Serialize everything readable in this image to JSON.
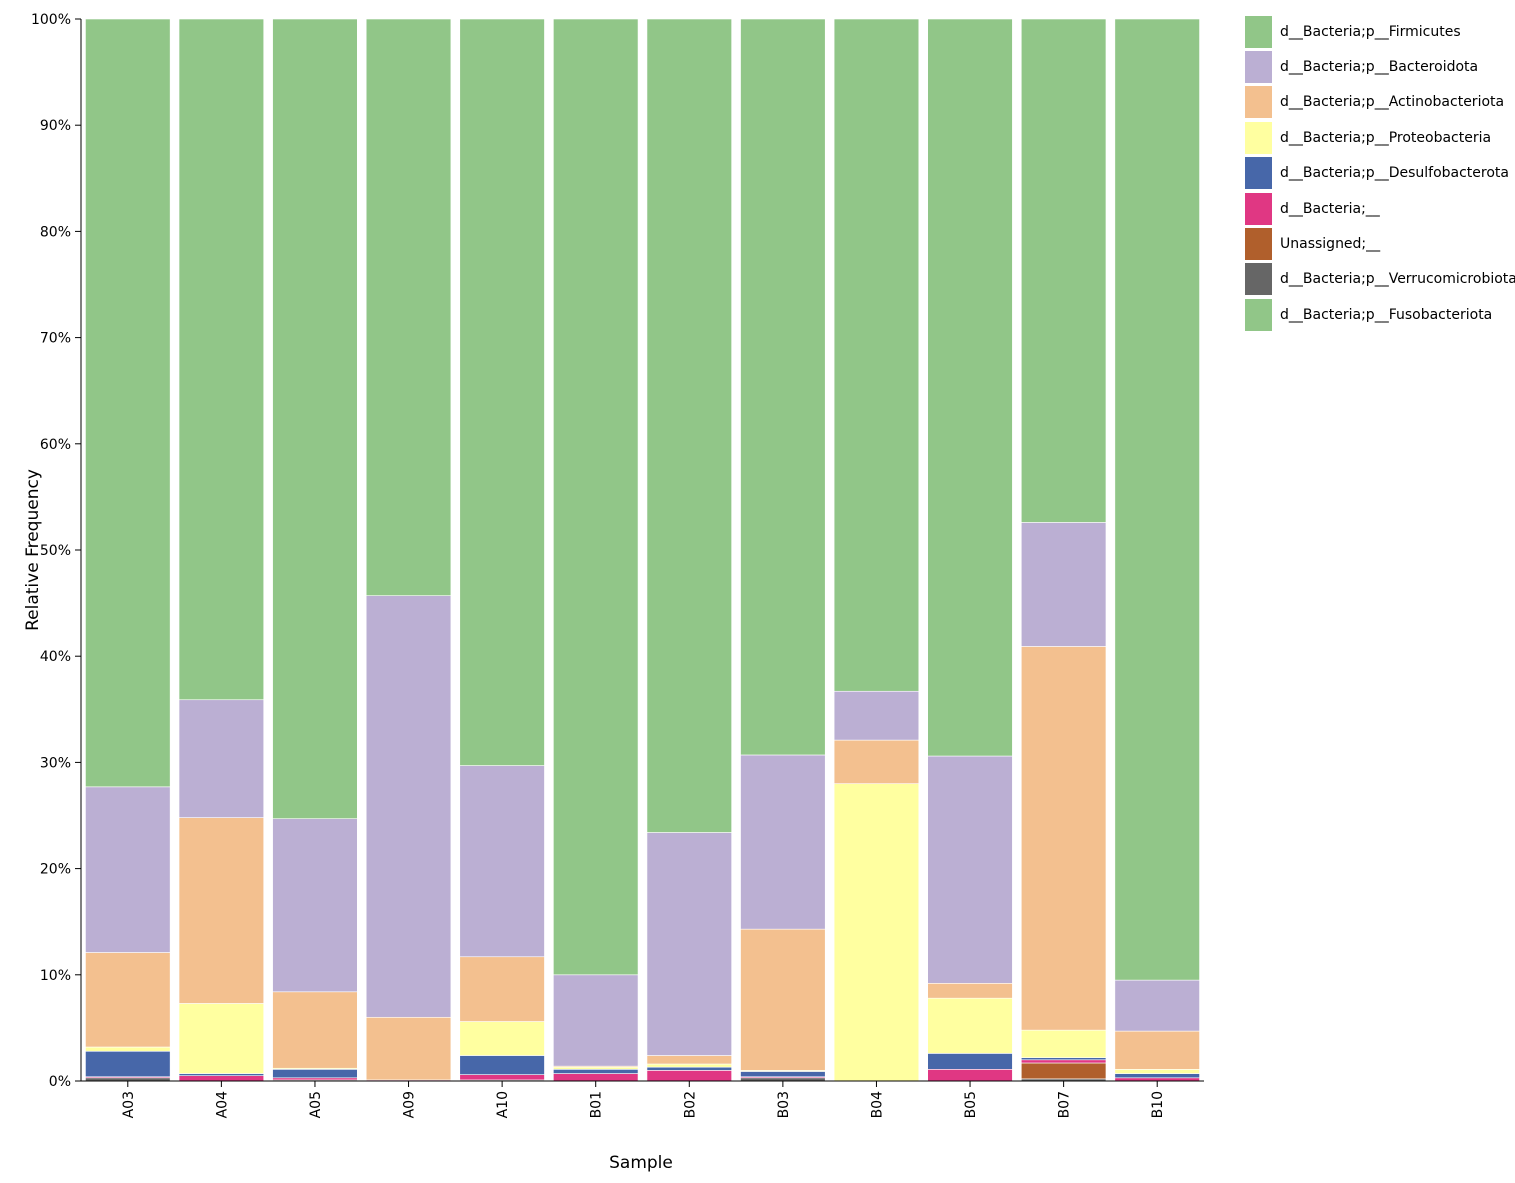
{
  "chart_data": {
    "type": "bar",
    "stacked": true,
    "xlabel": "Sample",
    "ylabel": "Relative Frequency",
    "ylim": [
      0,
      100
    ],
    "y_ticks": [
      "0%",
      "10%",
      "20%",
      "30%",
      "40%",
      "50%",
      "60%",
      "70%",
      "80%",
      "90%",
      "100%"
    ],
    "categories": [
      "A03",
      "A04",
      "A05",
      "A09",
      "A10",
      "B01",
      "B02",
      "B03",
      "B04",
      "B05",
      "B07",
      "B10"
    ],
    "series": [
      {
        "name": "d__Bacteria;p__Firmicutes",
        "color": "#91c688",
        "values": [
          72.3,
          64.1,
          75.3,
          54.3,
          70.3,
          90.0,
          76.6,
          69.3,
          63.3,
          69.4,
          47.5,
          90.5
        ]
      },
      {
        "name": "d__Bacteria;p__Bacteroidota",
        "color": "#bbafd3",
        "values": [
          15.6,
          11.1,
          16.3,
          39.7,
          18.0,
          8.6,
          21.0,
          16.4,
          4.6,
          21.4,
          11.7,
          4.8
        ]
      },
      {
        "name": "d__Bacteria;p__Actinobacteriota",
        "color": "#f3c08f",
        "values": [
          8.9,
          17.5,
          7.2,
          5.9,
          6.1,
          0.1,
          0.8,
          13.3,
          4.1,
          1.4,
          36.2,
          3.6
        ]
      },
      {
        "name": "d__Bacteria;p__Proteobacteria",
        "color": "#ffffa0",
        "values": [
          0.4,
          6.6,
          0.1,
          0.0,
          3.2,
          0.2,
          0.3,
          0.1,
          28.0,
          5.2,
          2.6,
          0.4
        ]
      },
      {
        "name": "d__Bacteria;p__Desulfobacterota",
        "color": "#4767a9",
        "values": [
          2.4,
          0.2,
          0.8,
          0.0,
          1.8,
          0.4,
          0.3,
          0.5,
          0.0,
          1.5,
          0.2,
          0.4
        ]
      },
      {
        "name": "d__Bacteria;__",
        "color": "#e03783",
        "values": [
          0.1,
          0.5,
          0.2,
          0.1,
          0.5,
          0.7,
          1.0,
          0.1,
          0.0,
          1.1,
          0.3,
          0.3
        ]
      },
      {
        "name": "Unassigned;__",
        "color": "#b05f2c",
        "values": [
          0.0,
          0.0,
          0.0,
          0.0,
          0.0,
          0.0,
          0.0,
          0.0,
          0.0,
          0.0,
          1.5,
          0.0
        ]
      },
      {
        "name": "d__Bacteria;p__Verrucomicrobiota",
        "color": "#666666",
        "values": [
          0.3,
          0.0,
          0.1,
          0.0,
          0.1,
          0.0,
          0.0,
          0.3,
          0.0,
          0.0,
          0.2,
          0.0
        ]
      },
      {
        "name": "d__Bacteria;p__Fusobacteriota",
        "color": "#91c688",
        "values": [
          0,
          0,
          0,
          0,
          0,
          0,
          0,
          0,
          0,
          0,
          0,
          0
        ]
      }
    ],
    "legend_position": "top-right",
    "grid": false
  }
}
